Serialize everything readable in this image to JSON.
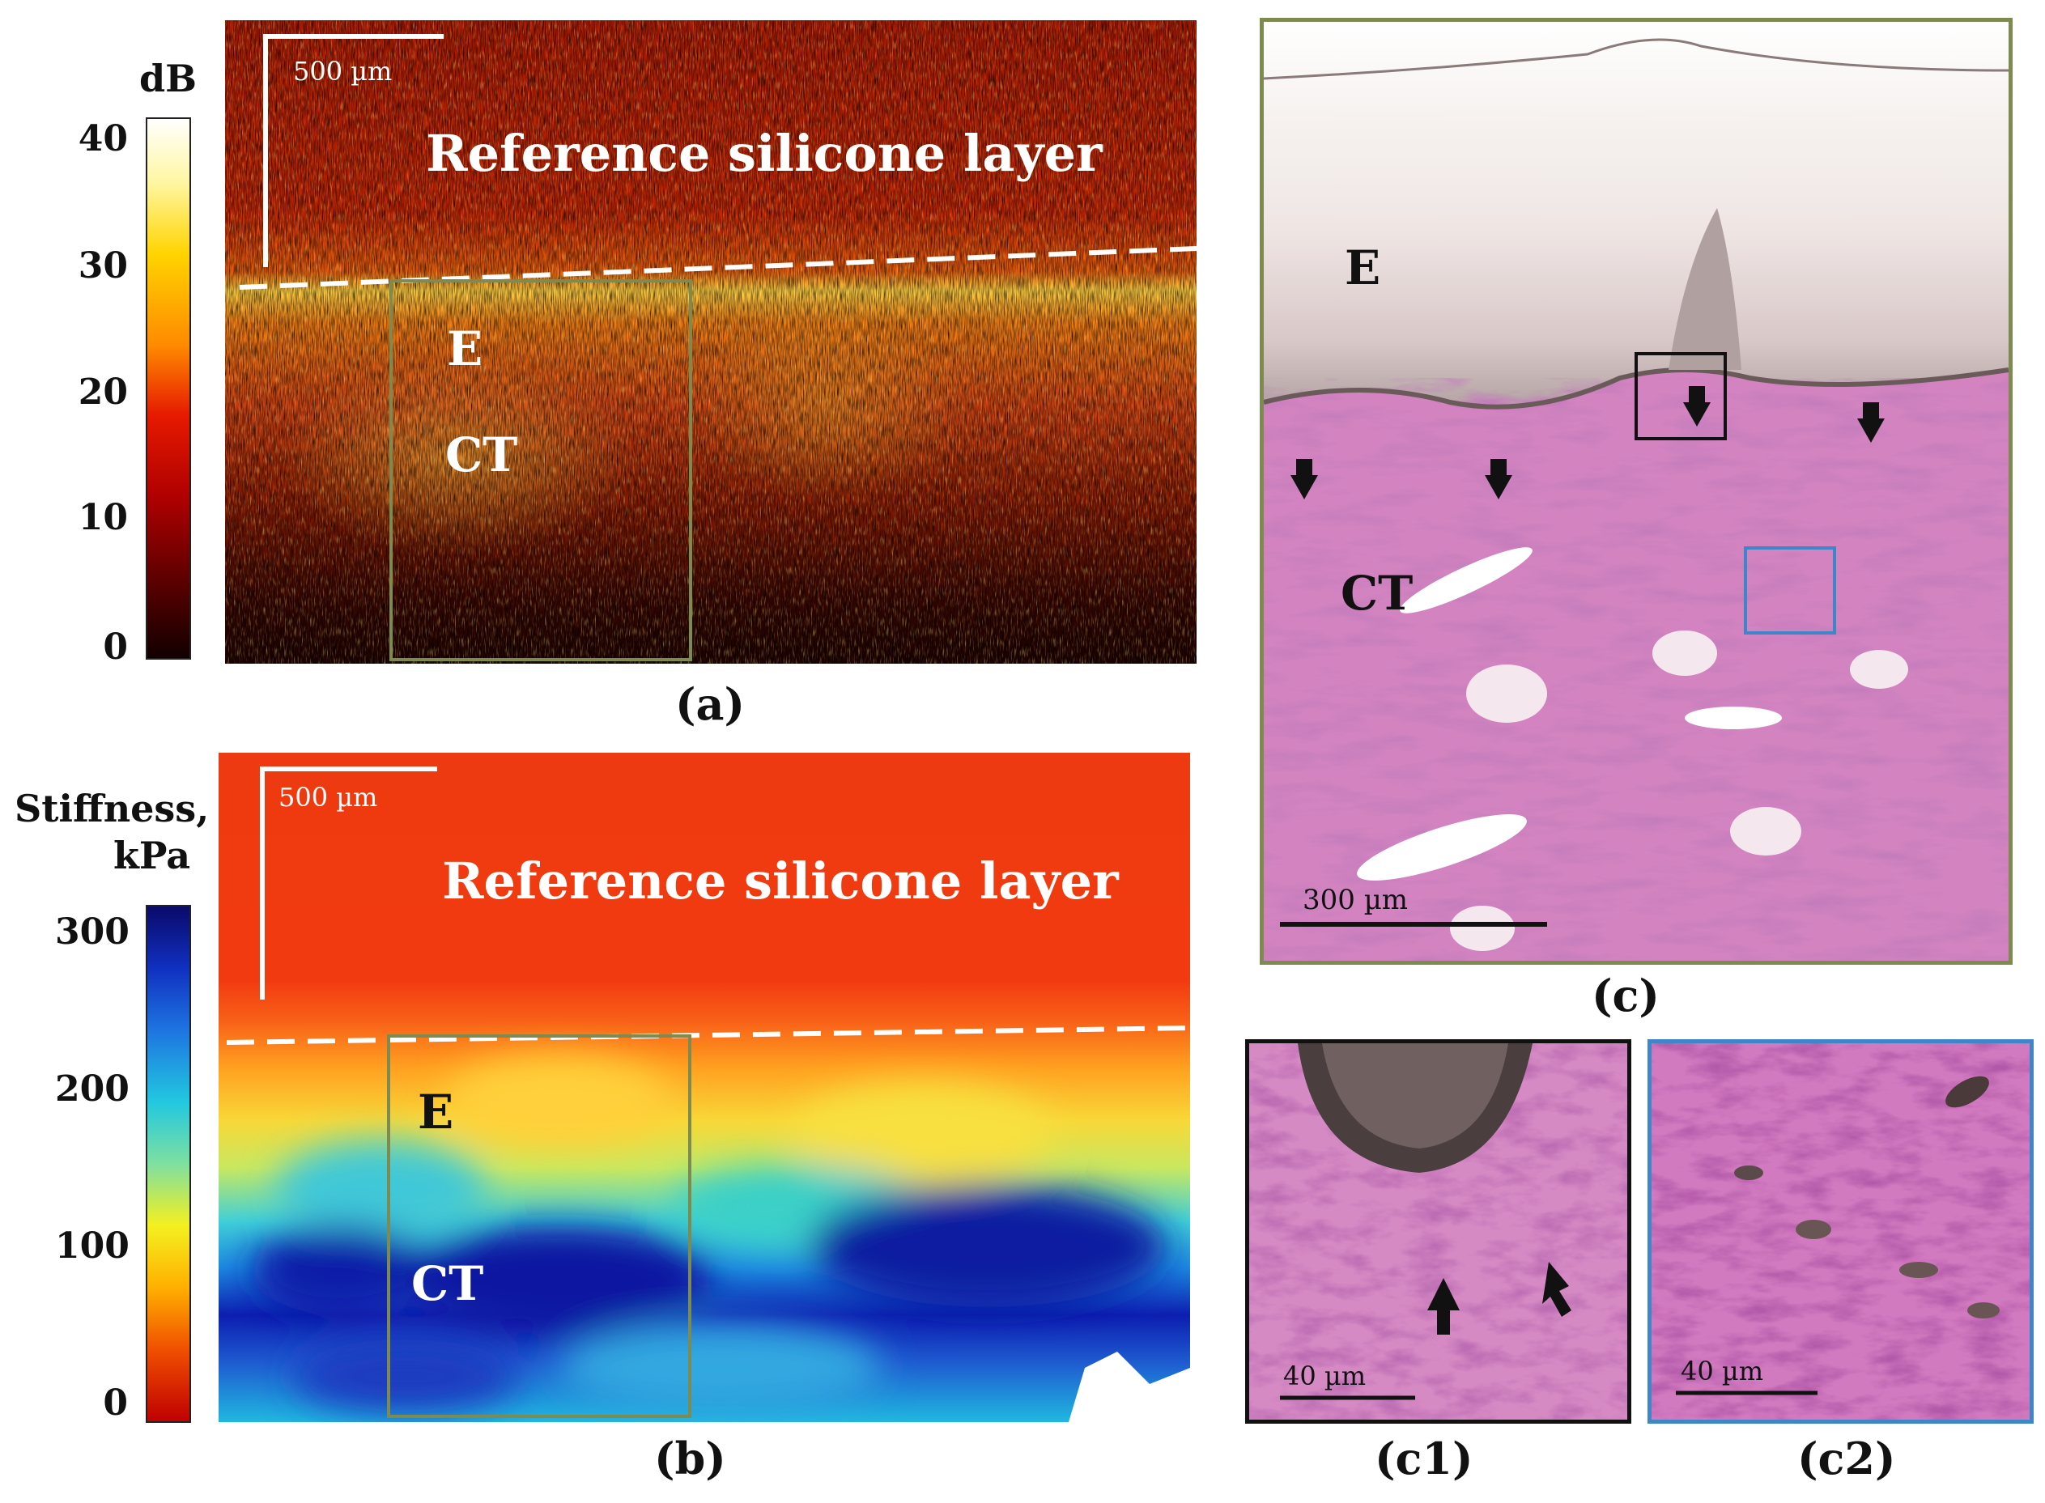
{
  "panel_a": {
    "colorbar_unit": "dB",
    "colorbar_ticks": [
      "40",
      "30",
      "20",
      "10",
      "0"
    ],
    "scale_bar": "500 µm",
    "silicone_label": "Reference silicone layer",
    "label_E": "E",
    "label_CT": "CT",
    "caption": "(a)"
  },
  "panel_b": {
    "colorbar_unit_line1": "Stiffness,",
    "colorbar_unit_line2": "kPa",
    "colorbar_ticks": [
      "300",
      "200",
      "100",
      "0"
    ],
    "scale_bar": "500 µm",
    "silicone_label": "Reference silicone layer",
    "label_E": "E",
    "label_CT": "CT",
    "caption": "(b)"
  },
  "panel_c": {
    "label_E": "E",
    "label_CT": "CT",
    "scale_bar": "300 µm",
    "caption": "(c)"
  },
  "panel_c1": {
    "scale_bar": "40 µm",
    "caption": "(c1)"
  },
  "panel_c2": {
    "scale_bar": "40 µm",
    "caption": "(c2)"
  },
  "colors": {
    "box_olive": "#7d8a50",
    "box_black": "#111111",
    "box_blue": "#3f86c9",
    "histology_pink": "#d27fbd"
  }
}
